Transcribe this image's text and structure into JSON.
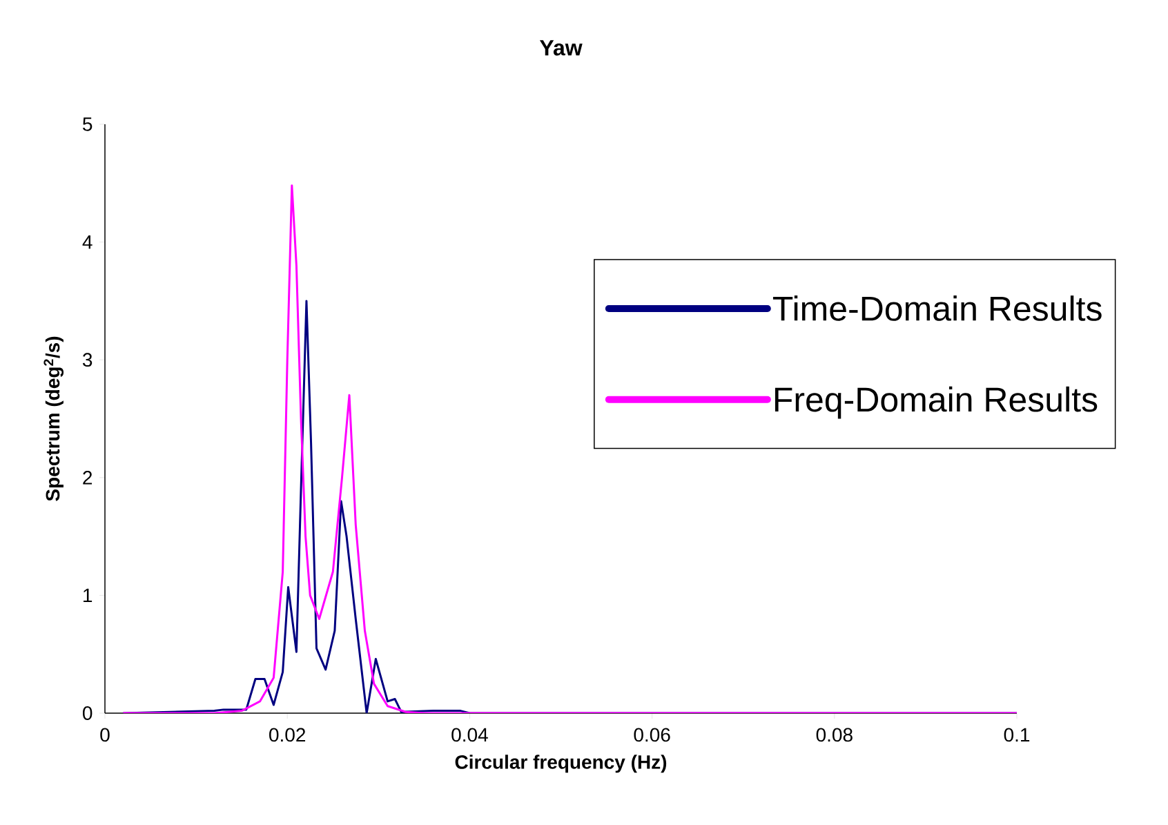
{
  "chart_data": {
    "type": "line",
    "title": "Yaw",
    "xlabel": "Circular frequency (Hz)",
    "ylabel": "Spectrum (deg$^{2}$/s)",
    "xlim": [
      0,
      0.1
    ],
    "ylim": [
      0,
      5
    ],
    "xticks": [
      0,
      0.02,
      0.04,
      0.06,
      0.08,
      0.1
    ],
    "yticks": [
      0,
      1,
      2,
      3,
      4,
      5
    ],
    "grid": false,
    "legend": "right",
    "marker": "none",
    "line_style": "solid",
    "series": [
      {
        "name": "Time-Domain Results",
        "color": "#000080",
        "x": [
          0.002,
          0.012,
          0.013,
          0.014,
          0.0155,
          0.0165,
          0.0175,
          0.0185,
          0.0195,
          0.0201,
          0.021,
          0.0215,
          0.0221,
          0.0226,
          0.0232,
          0.0242,
          0.0252,
          0.0259,
          0.0265,
          0.0275,
          0.0287,
          0.0297,
          0.031,
          0.0318,
          0.0325,
          0.036,
          0.039,
          0.04,
          0.1
        ],
        "values": [
          0,
          0.02,
          0.03,
          0.03,
          0.03,
          0.29,
          0.29,
          0.07,
          0.35,
          1.07,
          0.52,
          1.9,
          3.5,
          2.3,
          0.55,
          0.37,
          0.7,
          1.8,
          1.5,
          0.8,
          0.0,
          0.46,
          0.1,
          0.12,
          0.01,
          0.02,
          0.02,
          0,
          0
        ]
      },
      {
        "name": "Freq-Domain Results",
        "color": "#ff00ff",
        "x": [
          0.002,
          0.012,
          0.015,
          0.017,
          0.0185,
          0.0195,
          0.02,
          0.0205,
          0.021,
          0.0215,
          0.022,
          0.0225,
          0.0235,
          0.025,
          0.026,
          0.0268,
          0.0275,
          0.0285,
          0.0295,
          0.031,
          0.033,
          0.035,
          0.1
        ],
        "values": [
          0,
          0,
          0.02,
          0.1,
          0.3,
          1.2,
          3.0,
          4.48,
          3.8,
          2.5,
          1.5,
          1.0,
          0.8,
          1.2,
          2.0,
          2.7,
          1.6,
          0.7,
          0.25,
          0.06,
          0.01,
          0,
          0
        ]
      }
    ]
  }
}
